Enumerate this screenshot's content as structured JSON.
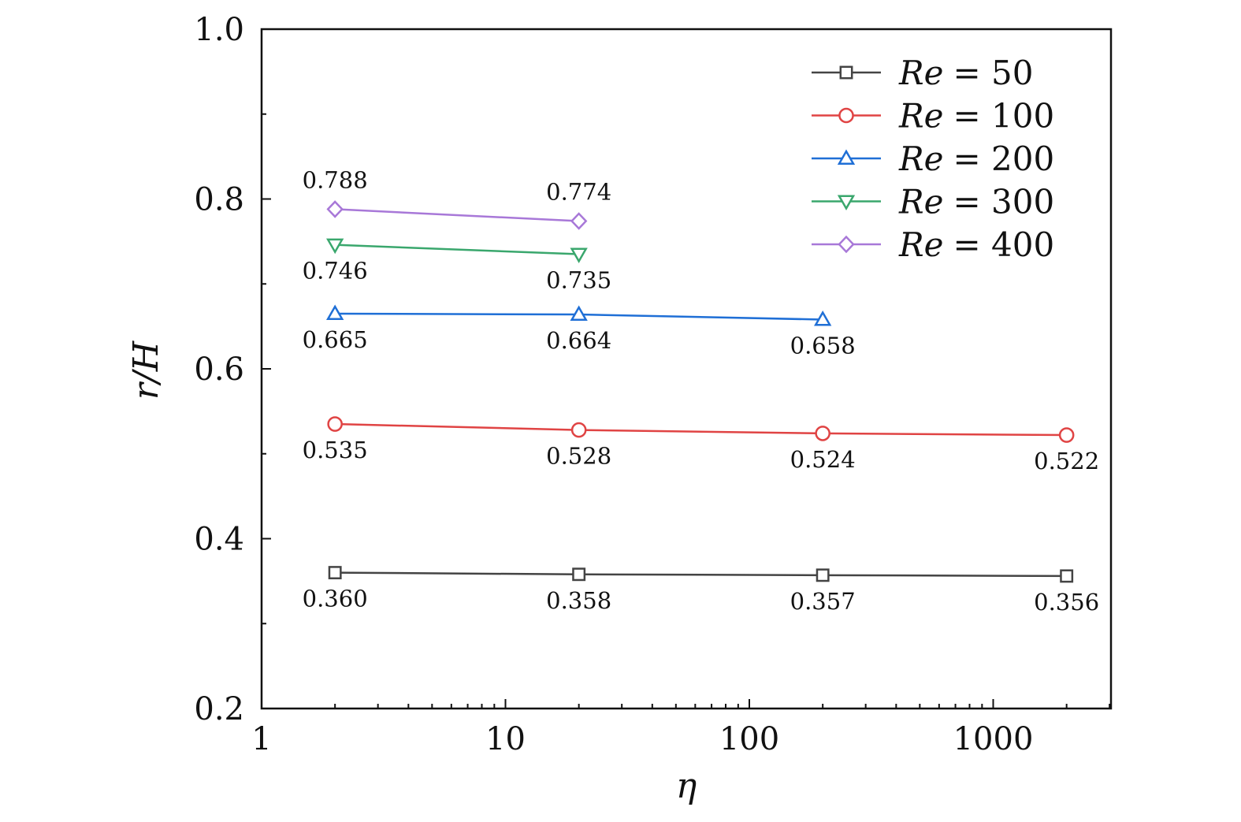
{
  "chart_data": {
    "type": "line",
    "xscale": "log",
    "xlabel": "η",
    "ylabel": "r/H",
    "xlim": [
      1,
      3000
    ],
    "ylim": [
      0.2,
      1.0
    ],
    "x_ticks": [
      1,
      10,
      100,
      1000
    ],
    "x_tick_labels": [
      "1",
      "10",
      "100",
      "1000"
    ],
    "y_ticks": [
      0.2,
      0.4,
      0.6,
      0.8,
      1.0
    ],
    "y_tick_labels": [
      "0.2",
      "0.4",
      "0.6",
      "0.8",
      "1.0"
    ],
    "legend_position": "top-right",
    "series": [
      {
        "name": "Re = 50",
        "legend_name": "Re",
        "legend_value": "= 50",
        "color": "#444444",
        "marker": "square",
        "x": [
          2,
          20,
          200,
          2000
        ],
        "values": [
          0.36,
          0.358,
          0.357,
          0.356
        ],
        "labels": [
          "0.360",
          "0.358",
          "0.357",
          "0.356"
        ],
        "label_side": "below"
      },
      {
        "name": "Re = 100",
        "legend_name": "Re",
        "legend_value": "= 100",
        "color": "#e04444",
        "marker": "circle",
        "x": [
          2,
          20,
          200,
          2000
        ],
        "values": [
          0.535,
          0.528,
          0.524,
          0.522
        ],
        "labels": [
          "0.535",
          "0.528",
          "0.524",
          "0.522"
        ],
        "label_side": "below"
      },
      {
        "name": "Re = 200",
        "legend_name": "Re",
        "legend_value": "= 200",
        "color": "#1f6fd6",
        "marker": "triangle-up",
        "x": [
          2,
          20,
          200
        ],
        "values": [
          0.665,
          0.664,
          0.658
        ],
        "labels": [
          "0.665",
          "0.664",
          "0.658"
        ],
        "label_side": "below"
      },
      {
        "name": "Re = 300",
        "legend_name": "Re",
        "legend_value": "= 300",
        "color": "#3aa76d",
        "marker": "triangle-down",
        "x": [
          2,
          20
        ],
        "values": [
          0.746,
          0.735
        ],
        "labels": [
          "0.746",
          "0.735"
        ],
        "label_side": "below"
      },
      {
        "name": "Re = 400",
        "legend_name": "Re",
        "legend_value": "= 400",
        "color": "#a878d8",
        "marker": "diamond",
        "x": [
          2,
          20
        ],
        "values": [
          0.788,
          0.774
        ],
        "labels": [
          "0.788",
          "0.774"
        ],
        "label_side": "above"
      }
    ]
  }
}
